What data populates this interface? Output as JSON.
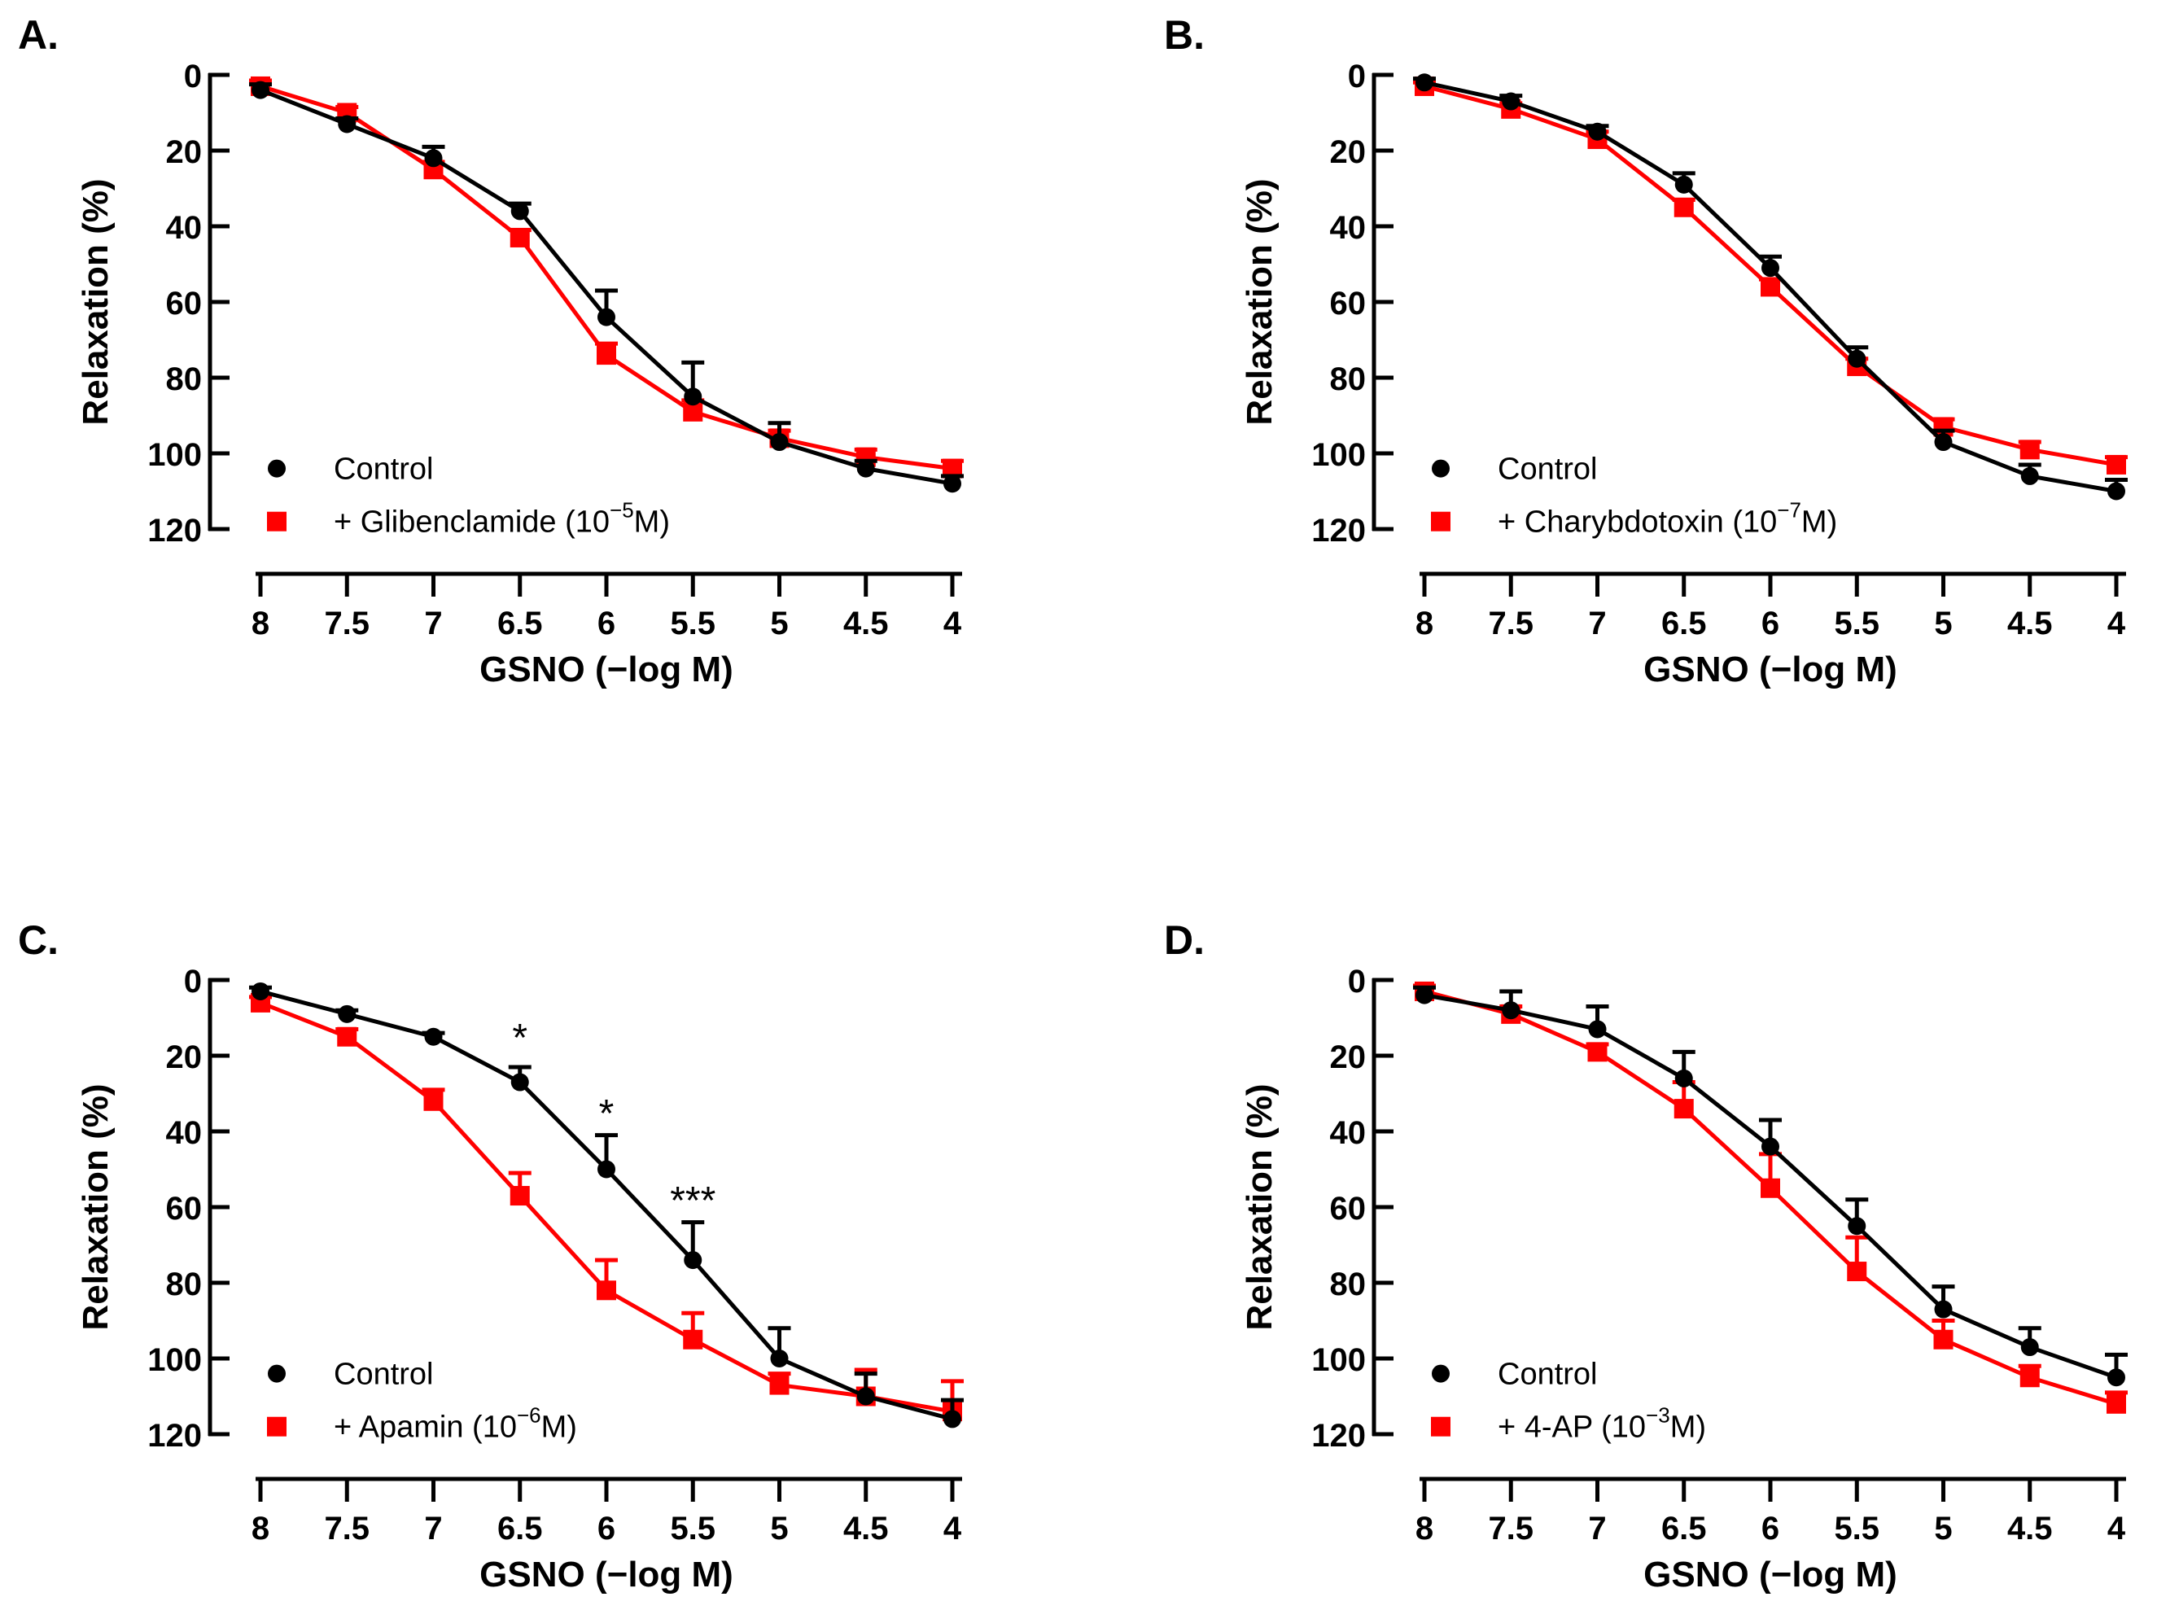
{
  "chart_data": [
    {
      "panel_label": "A.",
      "type": "line",
      "xlabel": "GSNO (−log M)",
      "ylabel": "Relaxation (%)",
      "x": [
        8,
        7.5,
        7,
        6.5,
        6,
        5.5,
        5,
        4.5,
        4
      ],
      "xlim": [
        8,
        4
      ],
      "ylim": [
        0,
        120
      ],
      "yticks": [
        0,
        20,
        40,
        60,
        80,
        100,
        120
      ],
      "xtick_labels": [
        "8",
        "7.5",
        "7",
        "6.5",
        "6",
        "5.5",
        "5",
        "4.5",
        "4"
      ],
      "series": [
        {
          "name": "Control",
          "legend_main": "Control",
          "legend_sup": "",
          "legend_tail": "",
          "color": "#000000",
          "marker": "circle",
          "values": [
            4,
            13,
            22,
            36,
            64,
            85,
            97,
            104,
            108
          ],
          "errors": [
            1.5,
            1.5,
            3,
            2,
            7,
            9,
            5,
            2,
            2
          ]
        },
        {
          "name": "+ Glibenclamide (10−5M)",
          "legend_main": "+ Glibenclamide (10",
          "legend_sup": "−5",
          "legend_tail": "M)",
          "color": "#ff0000",
          "marker": "square",
          "values": [
            3,
            10,
            25,
            43,
            74,
            89,
            96,
            101,
            104
          ],
          "errors": [
            1.5,
            1.5,
            2,
            2,
            3,
            3,
            2,
            2,
            2
          ]
        }
      ],
      "annotations": []
    },
    {
      "panel_label": "B.",
      "type": "line",
      "xlabel": "GSNO (−log M)",
      "ylabel": "Relaxation (%)",
      "x": [
        8,
        7.5,
        7,
        6.5,
        6,
        5.5,
        5,
        4.5,
        4
      ],
      "xlim": [
        8,
        4
      ],
      "ylim": [
        0,
        120
      ],
      "yticks": [
        0,
        20,
        40,
        60,
        80,
        100,
        120
      ],
      "xtick_labels": [
        "8",
        "7.5",
        "7",
        "6.5",
        "6",
        "5.5",
        "5",
        "4.5",
        "4"
      ],
      "series": [
        {
          "name": "Control",
          "legend_main": "Control",
          "legend_sup": "",
          "legend_tail": "",
          "color": "#000000",
          "marker": "circle",
          "values": [
            2,
            7,
            15,
            29,
            51,
            75,
            97,
            106,
            110
          ],
          "errors": [
            1,
            1.5,
            1.5,
            3,
            3,
            3,
            3,
            3,
            3
          ]
        },
        {
          "name": "+ Charybdotoxin (10−7M)",
          "legend_main": "+ Charybdotoxin (10",
          "legend_sup": "−7",
          "legend_tail": "M)",
          "color": "#ff0000",
          "marker": "square",
          "values": [
            3,
            9,
            17,
            35,
            56,
            77,
            93,
            99,
            103
          ],
          "errors": [
            1,
            1.5,
            2,
            2,
            2,
            2,
            2,
            2,
            2
          ]
        }
      ],
      "annotations": []
    },
    {
      "panel_label": "C.",
      "type": "line",
      "xlabel": "GSNO (−log M)",
      "ylabel": "Relaxation (%)",
      "x": [
        8,
        7.5,
        7,
        6.5,
        6,
        5.5,
        5,
        4.5,
        4
      ],
      "xlim": [
        8,
        4
      ],
      "ylim": [
        0,
        120
      ],
      "yticks": [
        0,
        20,
        40,
        60,
        80,
        100,
        120
      ],
      "xtick_labels": [
        "8",
        "7.5",
        "7",
        "6.5",
        "6",
        "5.5",
        "5",
        "4.5",
        "4"
      ],
      "series": [
        {
          "name": "Control",
          "legend_main": "Control",
          "legend_sup": "",
          "legend_tail": "",
          "color": "#000000",
          "marker": "circle",
          "values": [
            3,
            9,
            15,
            27,
            50,
            74,
            100,
            110,
            116
          ],
          "errors": [
            1,
            1,
            1,
            4,
            9,
            10,
            8,
            6,
            5
          ]
        },
        {
          "name": "+ Apamin (10−6M)",
          "legend_main": "+ Apamin (10",
          "legend_sup": "−6",
          "legend_tail": "M)",
          "color": "#ff0000",
          "marker": "square",
          "values": [
            6,
            15,
            32,
            57,
            82,
            95,
            107,
            110,
            114
          ],
          "errors": [
            1.5,
            2,
            3,
            6,
            8,
            7,
            3,
            7,
            8
          ]
        }
      ],
      "annotations": [
        {
          "text": "*",
          "x": 6.5,
          "y": 14
        },
        {
          "text": "*",
          "x": 6,
          "y": 34
        },
        {
          "text": "***",
          "x": 5.5,
          "y": 57
        }
      ]
    },
    {
      "panel_label": "D.",
      "type": "line",
      "xlabel": "GSNO (−log M)",
      "ylabel": "Relaxation (%)",
      "x": [
        8,
        7.5,
        7,
        6.5,
        6,
        5.5,
        5,
        4.5,
        4
      ],
      "xlim": [
        8,
        4
      ],
      "ylim": [
        0,
        120
      ],
      "yticks": [
        0,
        20,
        40,
        60,
        80,
        100,
        120
      ],
      "xtick_labels": [
        "8",
        "7.5",
        "7",
        "6.5",
        "6",
        "5.5",
        "5",
        "4.5",
        "4"
      ],
      "series": [
        {
          "name": "Control",
          "legend_main": "Control",
          "legend_sup": "",
          "legend_tail": "",
          "color": "#000000",
          "marker": "circle",
          "values": [
            4,
            8,
            13,
            26,
            44,
            65,
            87,
            97,
            105
          ],
          "errors": [
            2,
            5,
            6,
            7,
            7,
            7,
            6,
            5,
            6
          ]
        },
        {
          "name": "+ 4-AP (10−3M)",
          "legend_main": "+ 4-AP (10",
          "legend_sup": "−3",
          "legend_tail": "M)",
          "color": "#ff0000",
          "marker": "square",
          "values": [
            3,
            9,
            19,
            34,
            55,
            77,
            95,
            105,
            112
          ],
          "errors": [
            1.5,
            2,
            2,
            7,
            9,
            9,
            5,
            3,
            3
          ]
        }
      ],
      "annotations": []
    }
  ]
}
